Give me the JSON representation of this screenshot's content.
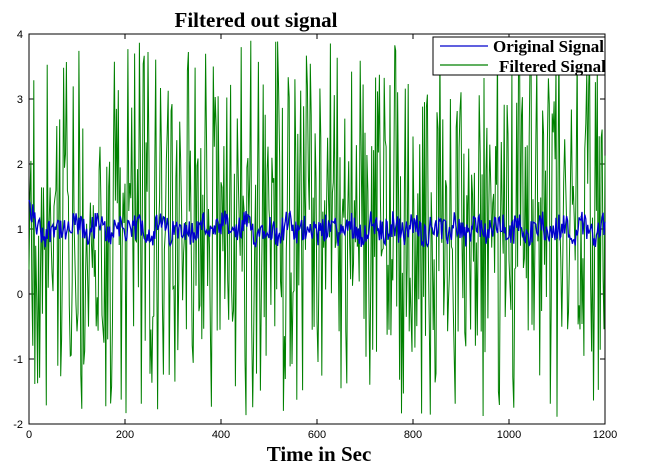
{
  "chart_data": {
    "type": "line",
    "title": "Filtered out signal",
    "xlabel": "Time in Sec",
    "ylabel": "",
    "xlim": [
      0,
      1200
    ],
    "ylim": [
      -2,
      4
    ],
    "xticks": [
      0,
      200,
      400,
      600,
      800,
      1000,
      1200
    ],
    "yticks": [
      -2,
      -1,
      0,
      1,
      2,
      3,
      4
    ],
    "grid": false,
    "legend_position": "top-right",
    "series": [
      {
        "name": "Original Signal",
        "color": "#0000cc",
        "description_values": "oscillates roughly between 0.7 and 1.4, centered near 1.0",
        "center": 1.0,
        "min": 0.7,
        "max": 1.45,
        "start_peak": 1.45
      },
      {
        "name": "Filtered Signal",
        "color": "#008000",
        "center": 1.0,
        "min": -1.9,
        "max": 3.9
      }
    ]
  }
}
